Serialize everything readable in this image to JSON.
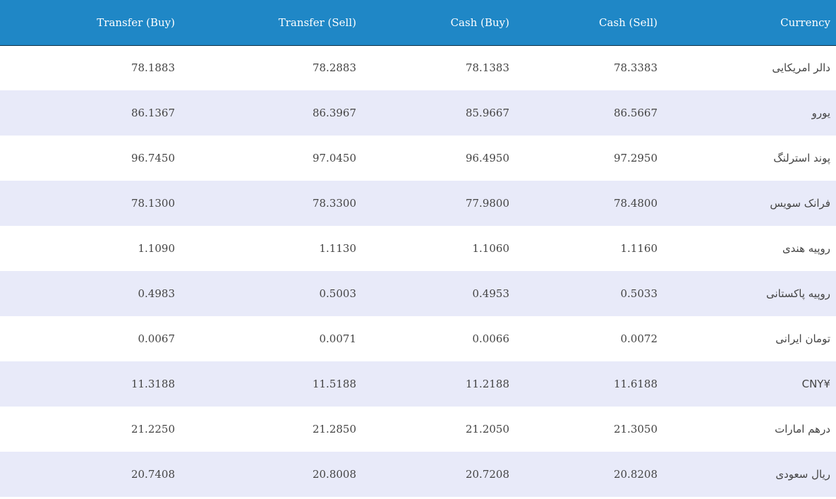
{
  "headers": {
    "transfer_buy": "Transfer (Buy)",
    "transfer_sell": "Transfer (Sell)",
    "cash_buy": "Cash (Buy)",
    "cash_sell": "Cash (Sell)",
    "currency": "Currency"
  },
  "rows": [
    {
      "transfer_buy": "78.1883",
      "transfer_sell": "78.2883",
      "cash_buy": "78.1383",
      "cash_sell": "78.3383",
      "currency": "دالر امریکایی"
    },
    {
      "transfer_buy": "86.1367",
      "transfer_sell": "86.3967",
      "cash_buy": "85.9667",
      "cash_sell": "86.5667",
      "currency": "یورو"
    },
    {
      "transfer_buy": "96.7450",
      "transfer_sell": "97.0450",
      "cash_buy": "96.4950",
      "cash_sell": "97.2950",
      "currency": "پوند استرلنگ"
    },
    {
      "transfer_buy": "78.1300",
      "transfer_sell": "78.3300",
      "cash_buy": "77.9800",
      "cash_sell": "78.4800",
      "currency": "فرانک سویس"
    },
    {
      "transfer_buy": "1.1090",
      "transfer_sell": "1.1130",
      "cash_buy": "1.1060",
      "cash_sell": "1.1160",
      "currency": "روپیه هندی"
    },
    {
      "transfer_buy": "0.4983",
      "transfer_sell": "0.5003",
      "cash_buy": "0.4953",
      "cash_sell": "0.5033",
      "currency": "روپیه پاکستانی"
    },
    {
      "transfer_buy": "0.0067",
      "transfer_sell": "0.0071",
      "cash_buy": "0.0066",
      "cash_sell": "0.0072",
      "currency": "تومان ایرانی"
    },
    {
      "transfer_buy": "11.3188",
      "transfer_sell": "11.5188",
      "cash_buy": "11.2188",
      "cash_sell": "11.6188",
      "currency": "¥CNY"
    },
    {
      "transfer_buy": "21.2250",
      "transfer_sell": "21.2850",
      "cash_buy": "21.2050",
      "cash_sell": "21.3050",
      "currency": "درهم امارات"
    },
    {
      "transfer_buy": "20.7408",
      "transfer_sell": "20.8008",
      "cash_buy": "20.7208",
      "cash_sell": "20.8208",
      "currency": "ریال سعودی"
    }
  ],
  "colors": {
    "header_bg": "#1f87c6",
    "header_text": "#ffffff",
    "row_alt_bg": "#e8eaf9",
    "cell_text": "#444444"
  }
}
